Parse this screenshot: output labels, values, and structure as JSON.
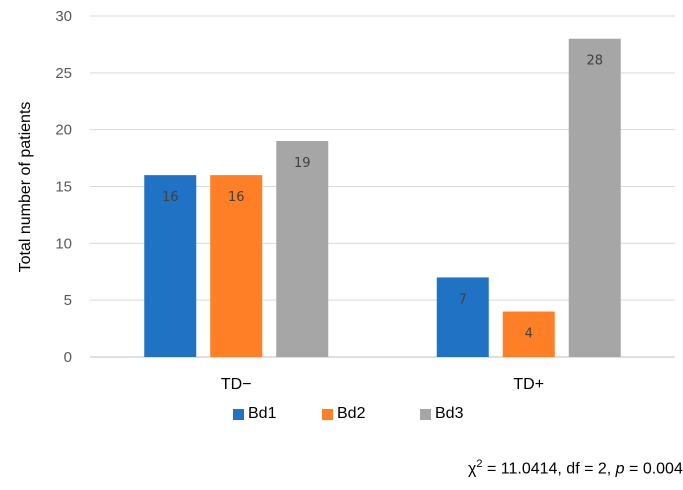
{
  "chart_data": {
    "type": "bar",
    "categories": [
      "TD−",
      "TD+"
    ],
    "series": [
      {
        "name": "Bd1",
        "values": [
          16,
          7
        ],
        "color": "#1F72C4"
      },
      {
        "name": "Bd2",
        "values": [
          16,
          4
        ],
        "color": "#FF7F27"
      },
      {
        "name": "Bd3",
        "values": [
          19,
          28
        ],
        "color": "#A6A6A6"
      }
    ],
    "ylabel": "Total number of patients",
    "ylim": [
      0,
      30
    ],
    "yticks": [
      0,
      5,
      10,
      15,
      20,
      25,
      30
    ],
    "grid": true,
    "legend_position": "bottom",
    "data_labels": true
  },
  "stat": {
    "chi": "χ",
    "sq": "2",
    "rest1": " = 11.0414, df = 2, ",
    "p": "p",
    "rest2": " = 0.004"
  }
}
